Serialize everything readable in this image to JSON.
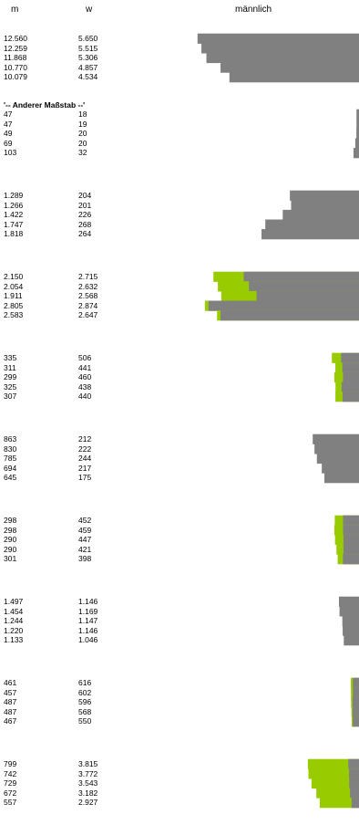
{
  "headers": {
    "m": "m",
    "w": "w",
    "chart": "männlich"
  },
  "note": "'-- Anderer Maßstab --'",
  "colors": {
    "male": "#808080",
    "female_excess": "#99cc00",
    "background": "#ffffff"
  },
  "chart_data": {
    "type": "bar",
    "title": "männlich",
    "columns": [
      "m",
      "w"
    ],
    "groups": [
      {
        "rows": [
          {
            "m": "12.560",
            "w": "5.650",
            "mv": 12560,
            "wv": 5650
          },
          {
            "m": "12.259",
            "w": "5.515",
            "mv": 12259,
            "wv": 5515
          },
          {
            "m": "11.868",
            "w": "5.306",
            "mv": 11868,
            "wv": 5306
          },
          {
            "m": "10.770",
            "w": "4.857",
            "mv": 10770,
            "wv": 4857
          },
          {
            "m": "10.079",
            "w": "4.534",
            "mv": 10079,
            "wv": 4534
          }
        ],
        "scale_max": 14600
      },
      {
        "rows": [
          {
            "m": "47",
            "w": "18",
            "mv": 47,
            "wv": 18
          },
          {
            "m": "47",
            "w": "19",
            "mv": 47,
            "wv": 19
          },
          {
            "m": "49",
            "w": "20",
            "mv": 49,
            "wv": 20
          },
          {
            "m": "69",
            "w": "20",
            "mv": 69,
            "wv": 20
          },
          {
            "m": "103",
            "w": "32",
            "mv": 103,
            "wv": 32
          }
        ],
        "scale_max": 3500
      },
      {
        "rows": [
          {
            "m": "1.289",
            "w": "204",
            "mv": 1289,
            "wv": 204
          },
          {
            "m": "1.266",
            "w": "201",
            "mv": 1266,
            "wv": 201
          },
          {
            "m": "1.422",
            "w": "226",
            "mv": 1422,
            "wv": 226
          },
          {
            "m": "1.747",
            "w": "268",
            "mv": 1747,
            "wv": 268
          },
          {
            "m": "1.818",
            "w": "264",
            "mv": 1818,
            "wv": 264
          }
        ],
        "scale_max": 3500
      },
      {
        "rows": [
          {
            "m": "2.150",
            "w": "2.715",
            "mv": 2150,
            "wv": 2715
          },
          {
            "m": "2.054",
            "w": "2.632",
            "mv": 2054,
            "wv": 2632
          },
          {
            "m": "1.911",
            "w": "2.568",
            "mv": 1911,
            "wv": 2568
          },
          {
            "m": "2.805",
            "w": "2.874",
            "mv": 2805,
            "wv": 2874
          },
          {
            "m": "2.583",
            "w": "2.647",
            "mv": 2583,
            "wv": 2647
          }
        ],
        "scale_max": 3500
      },
      {
        "rows": [
          {
            "m": "335",
            "w": "506",
            "mv": 335,
            "wv": 506
          },
          {
            "m": "311",
            "w": "441",
            "mv": 311,
            "wv": 441
          },
          {
            "m": "299",
            "w": "460",
            "mv": 299,
            "wv": 460
          },
          {
            "m": "325",
            "w": "438",
            "mv": 325,
            "wv": 438
          },
          {
            "m": "307",
            "w": "440",
            "mv": 307,
            "wv": 440
          }
        ],
        "scale_max": 3500
      },
      {
        "rows": [
          {
            "m": "863",
            "w": "212",
            "mv": 863,
            "wv": 212
          },
          {
            "m": "830",
            "w": "222",
            "mv": 830,
            "wv": 222
          },
          {
            "m": "785",
            "w": "244",
            "mv": 785,
            "wv": 244
          },
          {
            "m": "694",
            "w": "217",
            "mv": 694,
            "wv": 217
          },
          {
            "m": "645",
            "w": "175",
            "mv": 645,
            "wv": 175
          }
        ],
        "scale_max": 3500
      },
      {
        "rows": [
          {
            "m": "298",
            "w": "452",
            "mv": 298,
            "wv": 452
          },
          {
            "m": "298",
            "w": "459",
            "mv": 298,
            "wv": 459
          },
          {
            "m": "290",
            "w": "447",
            "mv": 290,
            "wv": 447
          },
          {
            "m": "290",
            "w": "421",
            "mv": 290,
            "wv": 421
          },
          {
            "m": "301",
            "w": "398",
            "mv": 301,
            "wv": 398
          }
        ],
        "scale_max": 3500
      },
      {
        "rows": [
          {
            "m": "1.497",
            "w": "1.146",
            "mv": 1497,
            "wv": 1146
          },
          {
            "m": "1.454",
            "w": "1.169",
            "mv": 1454,
            "wv": 1169
          },
          {
            "m": "1.244",
            "w": "1.147",
            "mv": 1244,
            "wv": 1147
          },
          {
            "m": "1.220",
            "w": "1.146",
            "mv": 1220,
            "wv": 1146
          },
          {
            "m": "1.133",
            "w": "1.046",
            "mv": 1133,
            "wv": 1046
          }
        ],
        "scale_max": 14000
      },
      {
        "rows": [
          {
            "m": "461",
            "w": "616",
            "mv": 461,
            "wv": 616
          },
          {
            "m": "457",
            "w": "602",
            "mv": 457,
            "wv": 602
          },
          {
            "m": "487",
            "w": "596",
            "mv": 487,
            "wv": 596
          },
          {
            "m": "487",
            "w": "568",
            "mv": 487,
            "wv": 568
          },
          {
            "m": "467",
            "w": "550",
            "mv": 467,
            "wv": 550
          }
        ],
        "scale_max": 14000
      },
      {
        "rows": [
          {
            "m": "799",
            "w": "3.815",
            "mv": 799,
            "wv": 3815
          },
          {
            "m": "742",
            "w": "3.772",
            "mv": 742,
            "wv": 3772
          },
          {
            "m": "729",
            "w": "3.543",
            "mv": 729,
            "wv": 3543
          },
          {
            "m": "672",
            "w": "3.182",
            "mv": 672,
            "wv": 3182
          },
          {
            "m": "557",
            "w": "2.927",
            "mv": 557,
            "wv": 2927
          }
        ],
        "scale_max": 14000
      }
    ]
  }
}
